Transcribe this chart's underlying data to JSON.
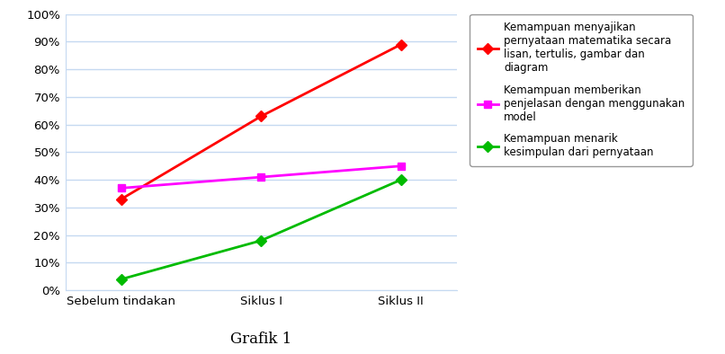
{
  "categories": [
    "Sebelum tindakan",
    "Siklus I",
    "Siklus II"
  ],
  "series": [
    {
      "name": "Kemampuan menyajikan\npernyataan matematika secara\nlisan, tertulis, gambar dan\ndiagram",
      "values": [
        0.33,
        0.63,
        0.89
      ],
      "color": "#FF0000",
      "marker": "D"
    },
    {
      "name": "Kemampuan memberikan\npenjelasan dengan menggunakan\nmodel",
      "values": [
        0.37,
        0.41,
        0.45
      ],
      "color": "#FF00FF",
      "marker": "s"
    },
    {
      "name": "Kemampuan menarik\nkesimpulan dari pernyataan",
      "values": [
        0.04,
        0.18,
        0.4
      ],
      "color": "#00BB00",
      "marker": "D"
    }
  ],
  "ylim": [
    0.0,
    1.0
  ],
  "yticks": [
    0.0,
    0.1,
    0.2,
    0.3,
    0.4,
    0.5,
    0.6,
    0.7,
    0.8,
    0.9,
    1.0
  ],
  "ytick_labels": [
    "0%",
    "10%",
    "20%",
    "30%",
    "40%",
    "50%",
    "60%",
    "70%",
    "80%",
    "90%",
    "100%"
  ],
  "title": "Grafik 1",
  "grid_color": "#C5D9F1",
  "background_color": "#FFFFFF",
  "legend_fontsize": 8.5,
  "axis_fontsize": 9.5,
  "title_fontsize": 12
}
